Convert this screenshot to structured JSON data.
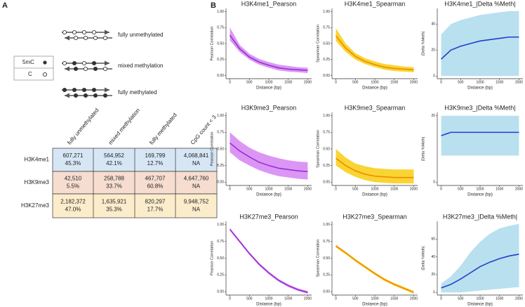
{
  "panel_labels": [
    "A",
    "B"
  ],
  "diagram": {
    "labels": [
      "fully unmethylated",
      "mixed methylation",
      "fully methylated"
    ]
  },
  "legend": {
    "items": [
      "5mC",
      "C"
    ]
  },
  "table": {
    "columns": [
      "fully unmethylated",
      "mixed methylation",
      "fully methylated",
      "CpG count < 3"
    ],
    "rows": [
      {
        "label": "H3K4me1",
        "cells": [
          [
            "607,271",
            "45.3%"
          ],
          [
            "564,952",
            "42.1%"
          ],
          [
            "169,799",
            "12.7%"
          ],
          [
            "4,068,841",
            "NA"
          ]
        ]
      },
      {
        "label": "H3K9me3",
        "cells": [
          [
            "42,510",
            "5.5%"
          ],
          [
            "258,788",
            "33.7%"
          ],
          [
            "467,707",
            "60.8%"
          ],
          [
            "4,647,760",
            "NA"
          ]
        ]
      },
      {
        "label": "H3K27me3",
        "cells": [
          [
            "2,182,372",
            "47.0%"
          ],
          [
            "1,635,921",
            "35.3%"
          ],
          [
            "820,297",
            "17.7%"
          ],
          [
            "9,948,752",
            "NA"
          ]
        ]
      }
    ]
  },
  "chart_data": [
    {
      "type": "line",
      "title": "H3K4me1_Pearson",
      "x_label": "Distance (bp)",
      "y_label": "Pearson Correlation",
      "x": [
        0,
        250,
        500,
        750,
        1000,
        1250,
        1500,
        1750,
        2000
      ],
      "values": [
        0.63,
        0.42,
        0.29,
        0.21,
        0.16,
        0.12,
        0.1,
        0.09,
        0.08
      ],
      "color": "#9a2fd0",
      "band": {
        "lower": [
          0.55,
          0.37,
          0.25,
          0.17,
          0.12,
          0.08,
          0.06,
          0.05,
          0.04
        ],
        "upper": [
          0.75,
          0.48,
          0.34,
          0.26,
          0.21,
          0.17,
          0.15,
          0.13,
          0.12
        ],
        "color": "#d27cf2"
      },
      "xlim": [
        -100,
        2100
      ],
      "ylim": [
        -0.05,
        1.05
      ],
      "xticks": [
        0,
        500,
        1000,
        1500,
        2000
      ],
      "yticks": [
        {
          "value": 0,
          "label": "0.00"
        },
        {
          "value": 0.25,
          "label": "0.25"
        },
        {
          "value": 0.5,
          "label": "0.50"
        },
        {
          "value": 0.75,
          "label": "0.75"
        },
        {
          "value": 1,
          "label": "1.00"
        }
      ]
    },
    {
      "type": "line",
      "title": "H3K4me1_Spearman",
      "x_label": "Distance (bp)",
      "y_label": "Spearman Correlation",
      "x": [
        0,
        250,
        500,
        750,
        1000,
        1250,
        1500,
        1750,
        2000
      ],
      "values": [
        0.62,
        0.43,
        0.3,
        0.22,
        0.17,
        0.13,
        0.11,
        0.1,
        0.09
      ],
      "color": "#f08a00",
      "band": {
        "lower": [
          0.54,
          0.37,
          0.25,
          0.18,
          0.13,
          0.09,
          0.07,
          0.06,
          0.05
        ],
        "upper": [
          0.74,
          0.5,
          0.35,
          0.27,
          0.22,
          0.18,
          0.16,
          0.14,
          0.13
        ],
        "color": "#f8c900"
      },
      "xlim": [
        -100,
        2100
      ],
      "ylim": [
        -0.05,
        1.05
      ],
      "xticks": [
        0,
        500,
        1000,
        1500,
        2000
      ],
      "yticks": [
        {
          "value": 0,
          "label": "0.00"
        },
        {
          "value": 0.25,
          "label": "0.25"
        },
        {
          "value": 0.5,
          "label": "0.50"
        },
        {
          "value": 0.75,
          "label": "0.75"
        },
        {
          "value": 1,
          "label": "1.00"
        }
      ]
    },
    {
      "type": "line",
      "title": "H3K4me1_|Delta %Meth|",
      "x_label": "Distance (bp)",
      "y_label": "|Delta %Meth|",
      "x": [
        0,
        250,
        500,
        750,
        1000,
        1250,
        1500,
        1750,
        2000
      ],
      "values": [
        13,
        20,
        23,
        25,
        27,
        28,
        29,
        30,
        30
      ],
      "color": "#1f3fd0",
      "band": {
        "lower": [
          0,
          0,
          0,
          0,
          0,
          0,
          0,
          0,
          0
        ],
        "upper": [
          32,
          40,
          43,
          45,
          47,
          48,
          49,
          50,
          50
        ],
        "color": "#a8d8ea"
      },
      "xlim": [
        -100,
        2100
      ],
      "ylim": [
        -2,
        52
      ],
      "xticks": [
        0,
        500,
        1000,
        1500,
        2000
      ],
      "yticks": [
        0,
        20,
        40
      ]
    },
    {
      "type": "line",
      "title": "H3K9me3_Pearson",
      "x_label": "Distance (bp)",
      "y_label": "Pearson Correlation",
      "x": [
        0,
        250,
        500,
        750,
        1000,
        1250,
        1500,
        1750,
        2000
      ],
      "values": [
        0.59,
        0.47,
        0.38,
        0.3,
        0.25,
        0.21,
        0.19,
        0.17,
        0.16
      ],
      "color": "#9a2fd0",
      "band": {
        "lower": [
          0.45,
          0.33,
          0.25,
          0.18,
          0.13,
          0.09,
          0.07,
          0.05,
          0.04
        ],
        "upper": [
          0.75,
          0.62,
          0.52,
          0.45,
          0.4,
          0.36,
          0.33,
          0.31,
          0.3
        ],
        "color": "#d27cf2"
      },
      "xlim": [
        -100,
        2100
      ],
      "ylim": [
        -0.05,
        1.05
      ],
      "xticks": [
        0,
        500,
        1000,
        1500,
        2000
      ],
      "yticks": [
        {
          "value": 0,
          "label": "0.00"
        },
        {
          "value": 0.25,
          "label": "0.25"
        },
        {
          "value": 0.5,
          "label": "0.50"
        },
        {
          "value": 0.75,
          "label": "0.75"
        },
        {
          "value": 1,
          "label": "1.00"
        }
      ]
    },
    {
      "type": "line",
      "title": "H3K9me3_Spearman",
      "x_label": "Distance (bp)",
      "y_label": "Spearman Correlation",
      "x": [
        0,
        250,
        500,
        750,
        1000,
        1250,
        1500,
        1750,
        2000
      ],
      "values": [
        0.36,
        0.25,
        0.17,
        0.12,
        0.09,
        0.08,
        0.07,
        0.07,
        0.07
      ],
      "color": "#f08a00",
      "band": {
        "lower": [
          0.25,
          0.15,
          0.08,
          0.03,
          0,
          -0.01,
          -0.02,
          -0.02,
          -0.02
        ],
        "upper": [
          0.5,
          0.37,
          0.28,
          0.24,
          0.21,
          0.2,
          0.19,
          0.19,
          0.19
        ],
        "color": "#f8c900"
      },
      "xlim": [
        -100,
        2100
      ],
      "ylim": [
        -0.05,
        1.05
      ],
      "xticks": [
        0,
        500,
        1000,
        1500,
        2000
      ],
      "yticks": [
        {
          "value": 0,
          "label": "0.00"
        },
        {
          "value": 0.25,
          "label": "0.25"
        },
        {
          "value": 0.5,
          "label": "0.50"
        },
        {
          "value": 0.75,
          "label": "0.75"
        },
        {
          "value": 1,
          "label": "1.00"
        }
      ]
    },
    {
      "type": "line",
      "title": "H3K9me3_|Delta %Meth|",
      "x_label": "Distance (bp)",
      "y_label": "|Delta %Meth|",
      "x": [
        0,
        250,
        500,
        750,
        1000,
        1250,
        1500,
        1750,
        2000
      ],
      "values": [
        14,
        15,
        15,
        15,
        15,
        15,
        15,
        15,
        15
      ],
      "color": "#1f3fd0",
      "band": {
        "lower": [
          8,
          8,
          8,
          8,
          8,
          8,
          8,
          8,
          8
        ],
        "upper": [
          20,
          20,
          20,
          20,
          20,
          20,
          20,
          20,
          20
        ],
        "color": "#a8d8ea"
      },
      "xlim": [
        -100,
        2100
      ],
      "ylim": [
        -1,
        21
      ],
      "xticks": [
        0,
        500,
        1000,
        1500,
        2000
      ],
      "yticks": [
        0,
        20
      ]
    },
    {
      "type": "line",
      "title": "H3K27me3_Pearson",
      "x_label": "Distance (bp)",
      "y_label": "Pearson Correlation",
      "x": [
        0,
        250,
        500,
        750,
        1000,
        1250,
        1500,
        1750,
        2000
      ],
      "values": [
        0.93,
        0.75,
        0.57,
        0.41,
        0.28,
        0.17,
        0.09,
        0.03,
        -0.01
      ],
      "color": "#9a2fd0",
      "band": {
        "lower": [
          0.91,
          0.73,
          0.55,
          0.39,
          0.26,
          0.15,
          0.07,
          0.01,
          -0.03
        ],
        "upper": [
          0.95,
          0.77,
          0.59,
          0.43,
          0.3,
          0.19,
          0.11,
          0.05,
          0.01
        ],
        "color": "#d27cf2"
      },
      "xlim": [
        -100,
        2100
      ],
      "ylim": [
        -0.05,
        1.05
      ],
      "xticks": [
        0,
        500,
        1000,
        1500,
        2000
      ],
      "yticks": [
        {
          "value": 0,
          "label": "0.00"
        },
        {
          "value": 0.25,
          "label": "0.25"
        },
        {
          "value": 0.5,
          "label": "0.50"
        },
        {
          "value": 0.75,
          "label": "0.75"
        },
        {
          "value": 1,
          "label": "1.00"
        }
      ]
    },
    {
      "type": "line",
      "title": "H3K27me3_Spearman",
      "x_label": "Distance (bp)",
      "y_label": "Spearman Correlation",
      "x": [
        0,
        250,
        500,
        750,
        1000,
        1250,
        1500,
        1750,
        2000
      ],
      "values": [
        0.68,
        0.58,
        0.47,
        0.37,
        0.27,
        0.18,
        0.11,
        0.05,
        -0.01
      ],
      "color": "#f08a00",
      "band": {
        "lower": [
          0.66,
          0.56,
          0.45,
          0.35,
          0.25,
          0.16,
          0.09,
          0.03,
          -0.03
        ],
        "upper": [
          0.7,
          0.6,
          0.49,
          0.39,
          0.29,
          0.2,
          0.13,
          0.07,
          0.01
        ],
        "color": "#f8c900"
      },
      "xlim": [
        -100,
        2100
      ],
      "ylim": [
        -0.05,
        1.05
      ],
      "xticks": [
        0,
        500,
        1000,
        1500,
        2000
      ],
      "yticks": [
        {
          "value": 0,
          "label": "0.00"
        },
        {
          "value": 0.25,
          "label": "0.25"
        },
        {
          "value": 0.5,
          "label": "0.50"
        },
        {
          "value": 0.75,
          "label": "0.75"
        },
        {
          "value": 1,
          "label": "1.00"
        }
      ]
    },
    {
      "type": "line",
      "title": "H3K27me3_|Delta %Meth|",
      "x_label": "Distance (bp)",
      "y_label": "|Delta %Meth|",
      "x": [
        0,
        250,
        500,
        750,
        1000,
        1250,
        1500,
        1750,
        2000
      ],
      "values": [
        5,
        9,
        15,
        22,
        29,
        34,
        38,
        41,
        43
      ],
      "color": "#1f3fd0",
      "band": {
        "lower": [
          0,
          0,
          0,
          1,
          2,
          3,
          4,
          5,
          6
        ],
        "upper": [
          10,
          18,
          30,
          45,
          57,
          66,
          72,
          75,
          77
        ],
        "color": "#a8d8ea"
      },
      "xlim": [
        -100,
        2100
      ],
      "ylim": [
        -3,
        80
      ],
      "xticks": [
        0,
        500,
        1000,
        1500,
        2000
      ],
      "yticks": [
        0,
        20,
        40,
        60
      ]
    }
  ]
}
